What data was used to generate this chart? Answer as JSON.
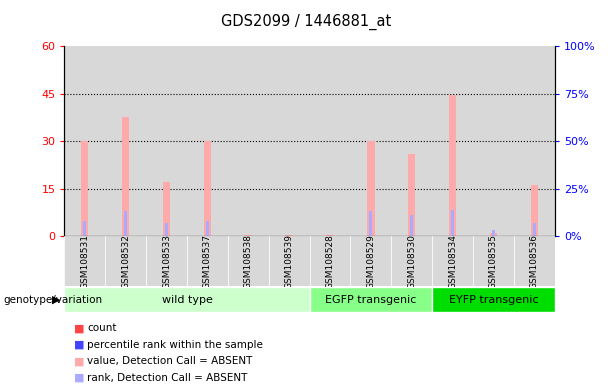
{
  "title": "GDS2099 / 1446881_at",
  "samples": [
    "GSM108531",
    "GSM108532",
    "GSM108533",
    "GSM108537",
    "GSM108538",
    "GSM108539",
    "GSM108528",
    "GSM108529",
    "GSM108530",
    "GSM108534",
    "GSM108535",
    "GSM108536"
  ],
  "count_values": [
    30.0,
    37.5,
    17.0,
    30.0,
    0.5,
    0.5,
    0.5,
    30.0,
    26.0,
    44.5,
    1.0,
    16.0
  ],
  "rank_values": [
    8.0,
    13.0,
    7.0,
    8.0,
    0.3,
    0.2,
    0.2,
    13.0,
    11.0,
    13.5,
    3.5,
    7.0
  ],
  "count_absent": [
    true,
    true,
    true,
    true,
    true,
    true,
    true,
    true,
    true,
    true,
    true,
    true
  ],
  "rank_absent": [
    true,
    true,
    true,
    true,
    true,
    true,
    true,
    true,
    true,
    true,
    true,
    true
  ],
  "groups": [
    {
      "label": "wild type",
      "start": 0,
      "end": 6,
      "color": "#ccffcc",
      "edgecolor": "#aaddaa"
    },
    {
      "label": "EGFP transgenic",
      "start": 6,
      "end": 9,
      "color": "#88ff88",
      "edgecolor": "#66dd66"
    },
    {
      "label": "EYFP transgenic",
      "start": 9,
      "end": 12,
      "color": "#00dd00",
      "edgecolor": "#00bb00"
    }
  ],
  "ylim_left": [
    0,
    60
  ],
  "ylim_right": [
    0,
    100
  ],
  "yticks_left": [
    0,
    15,
    30,
    45,
    60
  ],
  "yticks_right": [
    0,
    25,
    50,
    75,
    100
  ],
  "ytick_labels_left": [
    "0",
    "15",
    "30",
    "45",
    "60"
  ],
  "ytick_labels_right": [
    "0%",
    "25%",
    "50%",
    "75%",
    "100%"
  ],
  "count_color_present": "#ff4444",
  "rank_color_present": "#4444ff",
  "count_color_absent": "#ffaaaa",
  "rank_color_absent": "#aaaaff",
  "col_bg_color": "#d8d8d8",
  "legend_items": [
    {
      "label": "count",
      "color": "#ff4444"
    },
    {
      "label": "percentile rank within the sample",
      "color": "#4444ff"
    },
    {
      "label": "value, Detection Call = ABSENT",
      "color": "#ffaaaa"
    },
    {
      "label": "rank, Detection Call = ABSENT",
      "color": "#aaaaff"
    }
  ]
}
